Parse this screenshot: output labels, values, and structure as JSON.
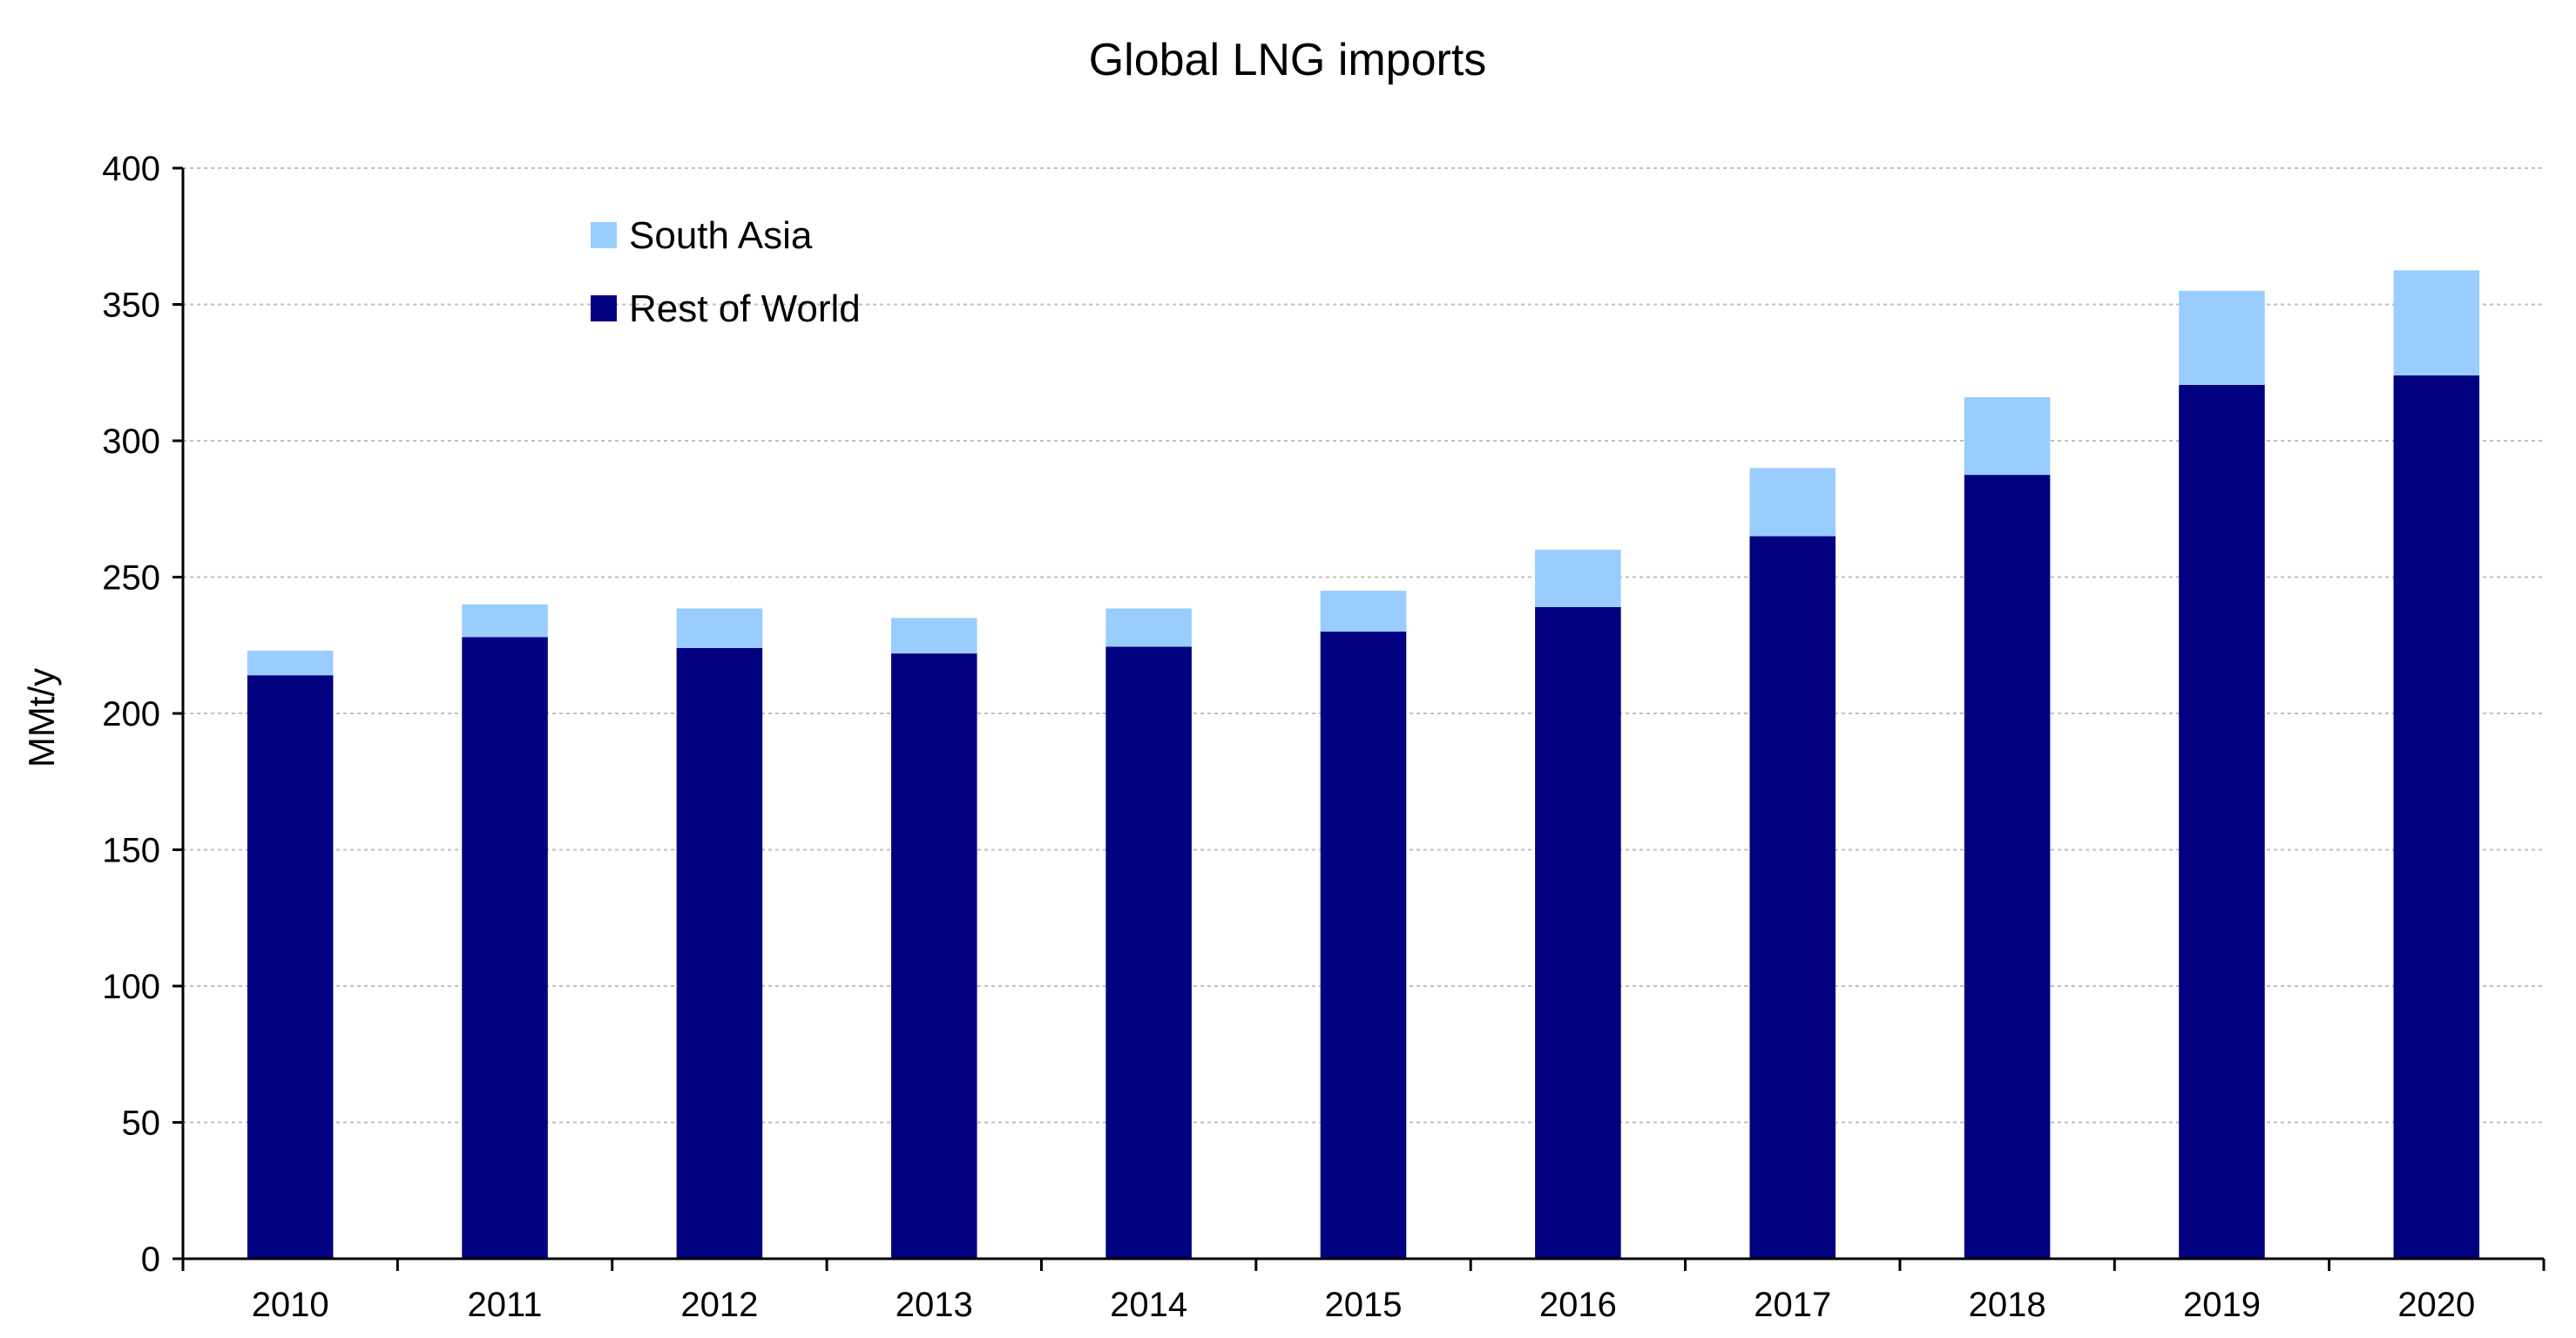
{
  "chart_data": {
    "type": "bar",
    "stacked": true,
    "title": "Global LNG imports",
    "xlabel": "",
    "ylabel": "MMt/y",
    "ylim": [
      0,
      400
    ],
    "yticks": [
      0,
      50,
      100,
      150,
      200,
      250,
      300,
      350,
      400
    ],
    "grid": true,
    "legend_position": "top-left",
    "categories": [
      "2010",
      "2011",
      "2012",
      "2013",
      "2014",
      "2015",
      "2016",
      "2017",
      "2018",
      "2019",
      "2020"
    ],
    "series": [
      {
        "name": "Rest of World",
        "color": "#000080",
        "values": [
          214,
          228,
          224,
          222,
          224.5,
          230,
          239,
          265,
          287.5,
          320.5,
          324
        ]
      },
      {
        "name": "South Asia",
        "color": "#99CCFF",
        "values": [
          9,
          12,
          14.5,
          13,
          14,
          15,
          21,
          25,
          28.5,
          34.5,
          38.5
        ]
      }
    ],
    "legend_order": [
      "South Asia",
      "Rest of World"
    ]
  },
  "colors": {
    "axis": "#000000",
    "grid": "#BFBFBF",
    "background": "#FFFFFF"
  }
}
